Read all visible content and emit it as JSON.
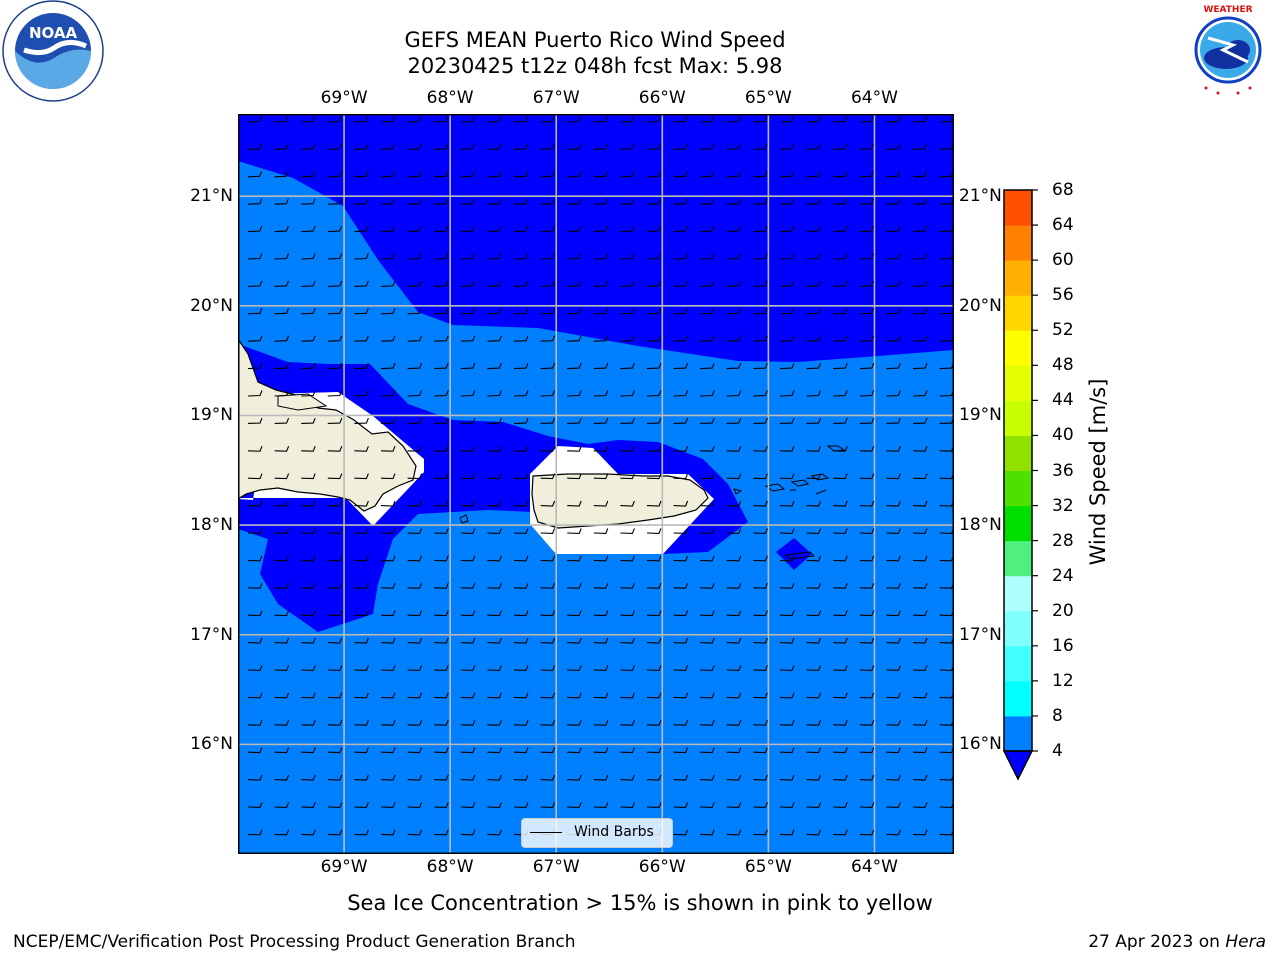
{
  "header": {
    "title_line1": "GEFS MEAN Puerto Rico Wind Speed",
    "title_line2": "20230425 t12z 048h fcst   Max: 5.98"
  },
  "logos": {
    "left": {
      "icon": "noaa-logo",
      "text": "NOAA",
      "ring_text": "NATIONAL OCEANIC AND ATMOSPHERIC ADMINISTRATION · U.S. DEPARTMENT OF COMMERCE"
    },
    "right": {
      "icon": "nws-logo",
      "ring_text": "NATIONAL WEATHER SERVICE"
    }
  },
  "map": {
    "lon_labels": [
      "69°W",
      "68°W",
      "67°W",
      "66°W",
      "65°W",
      "64°W"
    ],
    "lat_labels": [
      "21°N",
      "20°N",
      "19°N",
      "18°N",
      "17°N",
      "16°N"
    ],
    "lon_range": [
      -70.0,
      -63.25
    ],
    "lat_range": [
      15.0,
      21.75
    ],
    "lon_ticks": [
      -69,
      -68,
      -67,
      -66,
      -65,
      -64
    ],
    "lat_ticks": [
      21,
      20,
      19,
      18,
      17,
      16
    ],
    "colors": {
      "dark_blue": "#0000ff",
      "light_blue": "#0080ff",
      "land": "#efefdc",
      "masked": "#ffffff",
      "grid": "#bbbbbb"
    },
    "wind_barbs": {
      "direction": "east-to-west flow (trade winds)"
    }
  },
  "legend": {
    "label": "Wind Barbs"
  },
  "colorbar": {
    "title": "Wind Speed [m/s]",
    "ticks": [
      "68",
      "64",
      "60",
      "56",
      "52",
      "48",
      "44",
      "40",
      "36",
      "32",
      "28",
      "24",
      "20",
      "16",
      "12",
      "8",
      "4"
    ],
    "colors": [
      "#0080ff",
      "#00ffff",
      "#40ffff",
      "#80ffff",
      "#b0ffff",
      "#50f080",
      "#00e000",
      "#50e000",
      "#90e000",
      "#c8ff00",
      "#e6ff00",
      "#ffff00",
      "#ffd700",
      "#ffb000",
      "#ff8000",
      "#ff5000",
      "#ff2000",
      "#ff0000"
    ],
    "extend_color": "#0000ff"
  },
  "caption": "Sea Ice Concentration > 15% is shown in pink to yellow",
  "footer": {
    "left": "NCEP/EMC/Verification Post Processing Product Generation Branch",
    "right_prefix": "27 Apr 2023 on ",
    "right_host": "Hera"
  }
}
